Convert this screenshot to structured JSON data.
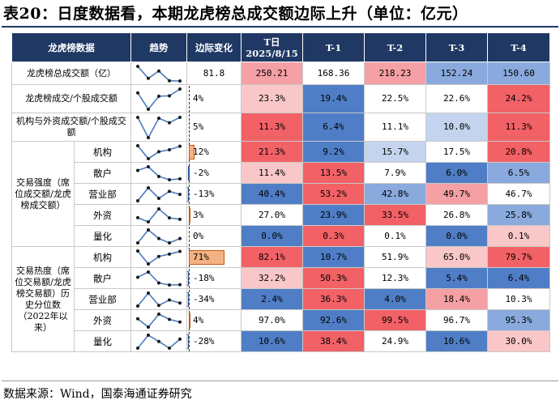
{
  "title": "表20：日度数据看，本期龙虎榜总成交额边际上升（单位：亿元）",
  "header": {
    "col1": "龙虎榜数据",
    "col2": "趋势",
    "col3": "边际变化",
    "t0_line1": "T日",
    "t0_line2": "2025/8/15",
    "t1": "T-1",
    "t2": "T-2",
    "t3": "T-3",
    "t4": "T-4"
  },
  "groups": {
    "strength": "交易强度（席位成交额/龙虎榜成交额）",
    "heat": "交易热度（席位交易额/龙虎榜交易额）历史分位数（2022年以来）"
  },
  "rows": [
    {
      "label": "龙虎榜总成交额（亿）",
      "change": "81.8",
      "bar": null,
      "t0": "250.21",
      "t1": "168.36",
      "t2": "218.23",
      "t3": "152.24",
      "t4": "150.60",
      "colors": [
        "#f4a0a4",
        "#ffffff",
        "#f4a0a4",
        "#8aa9dc",
        "#8aa9dc"
      ],
      "trend": [
        250.21,
        168.36,
        218.23,
        152.24,
        150.6
      ]
    },
    {
      "label": "龙虎榜成交/个股成交额",
      "change": "4%",
      "bar": null,
      "t0": "23.3%",
      "t1": "19.4%",
      "t2": "22.5%",
      "t3": "22.6%",
      "t4": "24.2%",
      "colors": [
        "#f9c7c8",
        "#4f7ec6",
        "#ffffff",
        "#ffffff",
        "#f26166"
      ],
      "trend": [
        23.3,
        19.4,
        22.5,
        22.6,
        24.2
      ]
    },
    {
      "label": "机构与外资成交额/个股成交额",
      "change": "5%",
      "bar": null,
      "t0": "11.3%",
      "t1": "6.4%",
      "t2": "11.1%",
      "t3": "10.0%",
      "t4": "11.3%",
      "colors": [
        "#f26166",
        "#4f7ec6",
        "#ffffff",
        "#c5d4ee",
        "#f26166"
      ],
      "trend": [
        11.3,
        6.4,
        11.1,
        10.0,
        11.3
      ]
    },
    {
      "sub": "机构",
      "change": "12%",
      "bar": 0.12,
      "t0": "21.3%",
      "t1": "9.2%",
      "t2": "15.7%",
      "t3": "17.5%",
      "t4": "20.8%",
      "colors": [
        "#f26166",
        "#4f7ec6",
        "#c5d4ee",
        "#ffffff",
        "#f26166"
      ],
      "trend": [
        21.3,
        9.2,
        15.7,
        17.5,
        20.8
      ]
    },
    {
      "sub": "散户",
      "change": "-2%",
      "bar": -0.02,
      "t0": "11.4%",
      "t1": "13.5%",
      "t2": "7.9%",
      "t3": "6.0%",
      "t4": "6.5%",
      "colors": [
        "#f9c7c8",
        "#f26166",
        "#ffffff",
        "#4f7ec6",
        "#8aa9dc"
      ],
      "trend": [
        11.4,
        13.5,
        7.9,
        6.0,
        6.5
      ]
    },
    {
      "sub": "营业部",
      "change": "-13%",
      "bar": -0.13,
      "t0": "40.4%",
      "t1": "53.2%",
      "t2": "42.8%",
      "t3": "49.7%",
      "t4": "46.7%",
      "colors": [
        "#4f7ec6",
        "#f26166",
        "#8aa9dc",
        "#f4a0a4",
        "#ffffff"
      ],
      "trend": [
        40.4,
        53.2,
        42.8,
        49.7,
        46.7
      ]
    },
    {
      "sub": "外资",
      "change": "3%",
      "bar": 0.03,
      "t0": "27.0%",
      "t1": "23.9%",
      "t2": "33.5%",
      "t3": "26.8%",
      "t4": "25.8%",
      "colors": [
        "#ffffff",
        "#4f7ec6",
        "#f26166",
        "#ffffff",
        "#8aa9dc"
      ],
      "trend": [
        27.0,
        23.9,
        33.5,
        26.8,
        25.8
      ]
    },
    {
      "sub": "量化",
      "change": "0%",
      "bar": null,
      "t0": "0.0%",
      "t1": "0.3%",
      "t2": "0.1%",
      "t3": "0.0%",
      "t4": "0.1%",
      "colors": [
        "#4f7ec6",
        "#f26166",
        "#ffffff",
        "#4f7ec6",
        "#f9c7c8"
      ],
      "trend": [
        0.0,
        0.3,
        0.1,
        0.0,
        0.1
      ]
    },
    {
      "sub": "机构",
      "change": "71%",
      "bar": 0.71,
      "t0": "82.1%",
      "t1": "10.7%",
      "t2": "51.9%",
      "t3": "65.0%",
      "t4": "79.7%",
      "colors": [
        "#f26166",
        "#4f7ec6",
        "#ffffff",
        "#f9c7c8",
        "#f26166"
      ],
      "trend": [
        82.1,
        10.7,
        51.9,
        65.0,
        79.7
      ]
    },
    {
      "sub": "散户",
      "change": "-18%",
      "bar": -0.18,
      "t0": "32.2%",
      "t1": "50.3%",
      "t2": "12.3%",
      "t3": "5.4%",
      "t4": "6.4%",
      "colors": [
        "#f9c7c8",
        "#f26166",
        "#ffffff",
        "#4f7ec6",
        "#4f7ec6"
      ],
      "trend": [
        32.2,
        50.3,
        12.3,
        5.4,
        6.4
      ]
    },
    {
      "sub": "营业部",
      "change": "-34%",
      "bar": -0.34,
      "t0": "2.4%",
      "t1": "36.3%",
      "t2": "4.0%",
      "t3": "18.4%",
      "t4": "10.3%",
      "colors": [
        "#4f7ec6",
        "#f26166",
        "#4f7ec6",
        "#f4a0a4",
        "#ffffff"
      ],
      "trend": [
        2.4,
        36.3,
        4.0,
        18.4,
        10.3
      ]
    },
    {
      "sub": "外资",
      "change": "4%",
      "bar": 0.04,
      "t0": "97.0%",
      "t1": "92.6%",
      "t2": "99.5%",
      "t3": "96.7%",
      "t4": "95.3%",
      "colors": [
        "#ffffff",
        "#4f7ec6",
        "#f26166",
        "#ffffff",
        "#8aa9dc"
      ],
      "trend": [
        97.0,
        92.6,
        99.5,
        96.7,
        95.3
      ]
    },
    {
      "sub": "量化",
      "change": "-28%",
      "bar": -0.28,
      "t0": "10.6%",
      "t1": "38.4%",
      "t2": "24.9%",
      "t3": "10.6%",
      "t4": "30.0%",
      "colors": [
        "#4f7ec6",
        "#f26166",
        "#ffffff",
        "#4f7ec6",
        "#f9c7c8"
      ],
      "trend": [
        10.6,
        38.4,
        24.9,
        10.6,
        30.0
      ]
    }
  ],
  "source": "数据来源：Wind，国泰海通证券研究"
}
